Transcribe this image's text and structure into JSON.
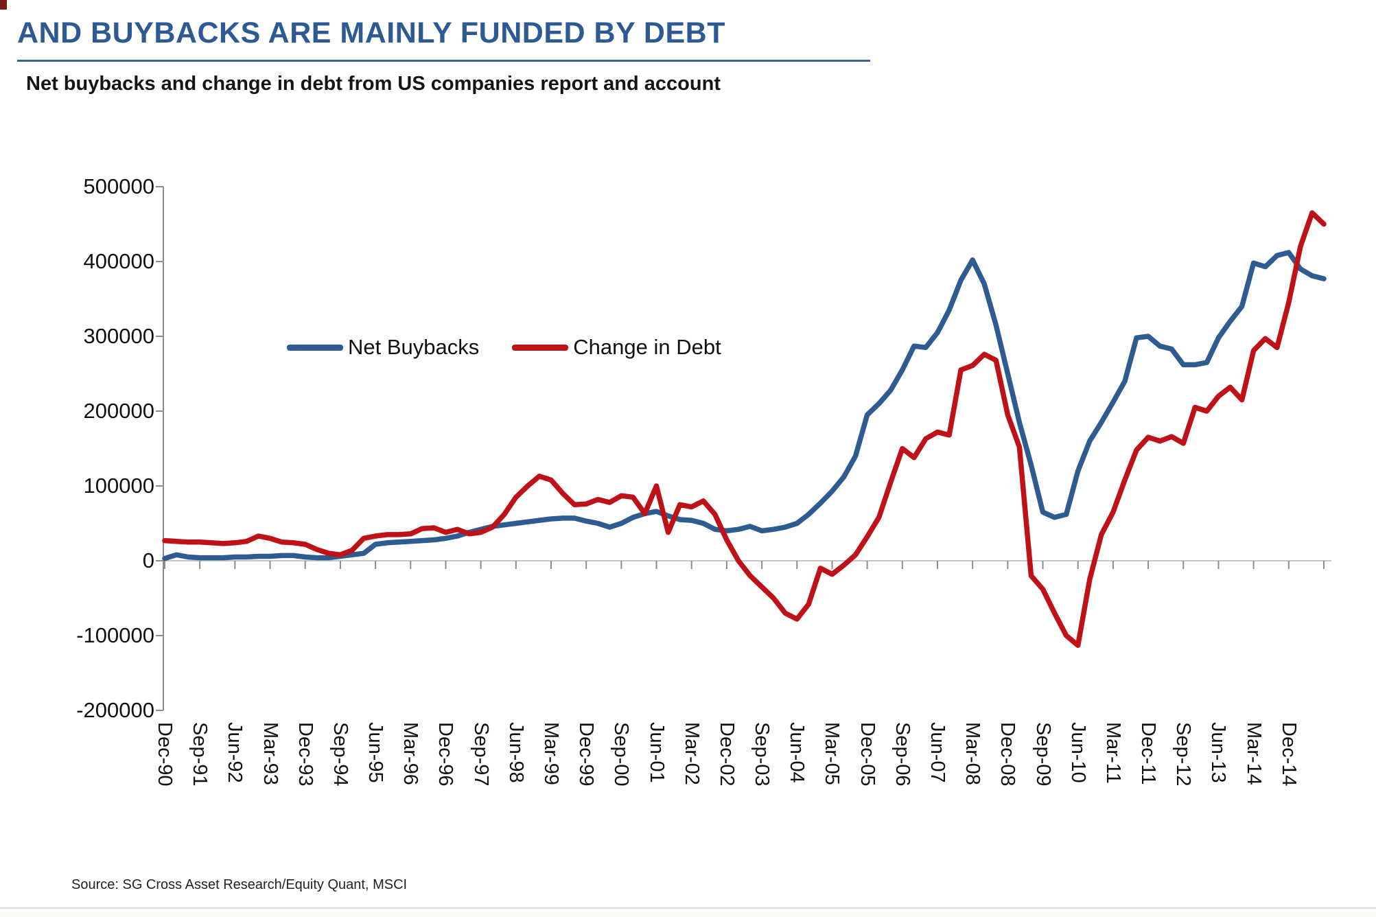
{
  "page": {
    "title": "AND BUYBACKS ARE MAINLY FUNDED BY DEBT",
    "source": "Source: SG Cross Asset Research/Equity Quant, MSCI",
    "title_color": "#2d5a93"
  },
  "chart_data": {
    "type": "line",
    "title": "Net buybacks and change in debt from US companies report and account",
    "xlabel": "",
    "ylabel": "",
    "frequency": "quarterly",
    "x_start": "Dec-90",
    "x_end": "Sep-15",
    "ylim": [
      -200000,
      500000
    ],
    "y_ticks": [
      -200000,
      -100000,
      0,
      100000,
      200000,
      300000,
      400000,
      500000
    ],
    "grid": "zero-line-only",
    "legend_position": "inside-top-left",
    "x_tick_labels": [
      "Dec-90",
      "Sep-91",
      "Jun-92",
      "Mar-93",
      "Dec-93",
      "Sep-94",
      "Jun-95",
      "Mar-96",
      "Dec-96",
      "Sep-97",
      "Jun-98",
      "Mar-99",
      "Dec-99",
      "Sep-00",
      "Jun-01",
      "Mar-02",
      "Dec-02",
      "Sep-03",
      "Jun-04",
      "Mar-05",
      "Dec-05",
      "Sep-06",
      "Jun-07",
      "Mar-08",
      "Dec-08",
      "Sep-09",
      "Jun-10",
      "Mar-11",
      "Dec-11",
      "Sep-12",
      "Jun-13",
      "Mar-14",
      "Dec-14"
    ],
    "series": [
      {
        "name": "Net Buybacks",
        "color": "#2e5c91",
        "values": [
          3000,
          8000,
          5000,
          4000,
          4000,
          4000,
          5000,
          5000,
          6000,
          6000,
          7000,
          7000,
          5000,
          4000,
          4000,
          6000,
          8000,
          10000,
          22000,
          24000,
          25000,
          26000,
          27000,
          28000,
          30000,
          33000,
          38000,
          42000,
          46000,
          48000,
          50000,
          52000,
          54000,
          56000,
          57000,
          57000,
          53000,
          50000,
          45000,
          50000,
          58000,
          63000,
          66000,
          60000,
          55000,
          54000,
          50000,
          42000,
          40000,
          42000,
          46000,
          40000,
          42000,
          45000,
          50000,
          62000,
          77000,
          93000,
          112000,
          140000,
          195000,
          210000,
          228000,
          255000,
          287000,
          285000,
          305000,
          335000,
          375000,
          402000,
          370000,
          315000,
          250000,
          185000,
          128000,
          65000,
          58000,
          62000,
          120000,
          160000,
          185000,
          212000,
          240000,
          298000,
          300000,
          287000,
          283000,
          262000,
          262000,
          265000,
          298000,
          320000,
          340000,
          398000,
          393000,
          408000,
          412000,
          390000,
          381000,
          377000
        ]
      },
      {
        "name": "Change in Debt",
        "color": "#be1118",
        "values": [
          27000,
          26000,
          25000,
          25000,
          24000,
          23000,
          24000,
          26000,
          33000,
          30000,
          25000,
          24000,
          22000,
          15000,
          10000,
          8000,
          14000,
          30000,
          33000,
          35000,
          35000,
          36000,
          43000,
          44000,
          38000,
          42000,
          36000,
          38000,
          45000,
          62000,
          85000,
          100000,
          113000,
          108000,
          90000,
          75000,
          76000,
          82000,
          78000,
          87000,
          85000,
          63000,
          100000,
          38000,
          75000,
          72000,
          80000,
          62000,
          28000,
          0,
          -20000,
          -35000,
          -50000,
          -70000,
          -78000,
          -58000,
          -10000,
          -18000,
          -6000,
          8000,
          32000,
          58000,
          105000,
          150000,
          138000,
          163000,
          172000,
          168000,
          255000,
          261000,
          276000,
          268000,
          195000,
          152000,
          -20000,
          -38000,
          -70000,
          -100000,
          -113000,
          -25000,
          35000,
          65000,
          108000,
          148000,
          165000,
          160000,
          166000,
          157000,
          205000,
          200000,
          220000,
          232000,
          215000,
          281000,
          297000,
          285000,
          345000,
          420000,
          465000,
          450000
        ]
      }
    ]
  }
}
